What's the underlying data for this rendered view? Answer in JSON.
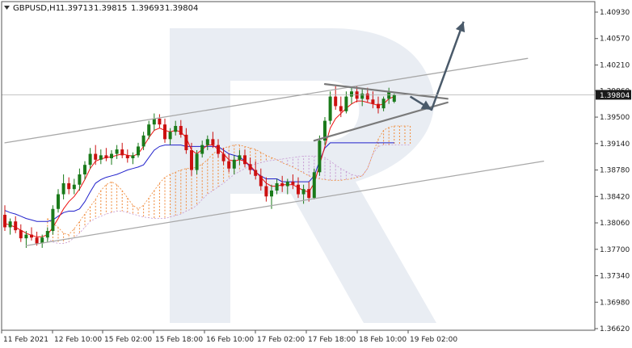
{
  "header": {
    "symbol": "GBPUSD,H1",
    "open": "1.39713",
    "high": "1.39815",
    "low": "1.39693",
    "close": "1.39804"
  },
  "colors": {
    "bull": "#1a7a1a",
    "bear": "#cc1111",
    "tenkan": "#ee1111",
    "kijun": "#2222cc",
    "cloud_a": "#f08a3a",
    "cloud_b": "#c79ad3",
    "channel": "#a8a8a8",
    "triangle": "#7a7a7a",
    "arrow": "#4a5a6a",
    "price_label_bg": "#1a1a1a",
    "price_label_text": "#ffffff",
    "watermark": "#e9edf3"
  },
  "chart_data": {
    "type": "candlestick",
    "symbol": "GBPUSD",
    "timeframe": "H1",
    "current_price": "1.39804",
    "y_ticks": [
      "1.40930",
      "1.40570",
      "1.40210",
      "1.39860",
      "1.39500",
      "1.39140",
      "1.38780",
      "1.38420",
      "1.38060",
      "1.37700",
      "1.37340",
      "1.36980",
      "1.36620"
    ],
    "ylim": [
      1.3662,
      1.4093
    ],
    "x_ticks": [
      "11 Feb 2021",
      "12 Feb 10:00",
      "15 Feb 02:00",
      "15 Feb 18:00",
      "16 Feb 10:00",
      "17 Feb 02:00",
      "17 Feb 18:00",
      "18 Feb 10:00",
      "19 Feb 02:00"
    ],
    "candles": [
      [
        1.3817,
        1.383,
        1.3795,
        1.38
      ],
      [
        1.38,
        1.3812,
        1.379,
        1.3808
      ],
      [
        1.3808,
        1.3815,
        1.3792,
        1.3796
      ],
      [
        1.3796,
        1.3804,
        1.378,
        1.3785
      ],
      [
        1.3785,
        1.3795,
        1.3772,
        1.379
      ],
      [
        1.379,
        1.38,
        1.3782,
        1.3786
      ],
      [
        1.3786,
        1.3794,
        1.3775,
        1.3778
      ],
      [
        1.3778,
        1.379,
        1.3772,
        1.3786
      ],
      [
        1.3786,
        1.38,
        1.378,
        1.3795
      ],
      [
        1.3795,
        1.383,
        1.379,
        1.3825
      ],
      [
        1.3825,
        1.3852,
        1.382,
        1.3845
      ],
      [
        1.3845,
        1.3872,
        1.3838,
        1.386
      ],
      [
        1.386,
        1.3868,
        1.3845,
        1.3852
      ],
      [
        1.3852,
        1.3866,
        1.3845,
        1.3858
      ],
      [
        1.3858,
        1.388,
        1.385,
        1.3872
      ],
      [
        1.3872,
        1.389,
        1.3865,
        1.3885
      ],
      [
        1.3885,
        1.3908,
        1.388,
        1.39
      ],
      [
        1.39,
        1.3912,
        1.3885,
        1.3892
      ],
      [
        1.3892,
        1.3906,
        1.3886,
        1.3898
      ],
      [
        1.3898,
        1.3908,
        1.389,
        1.3894
      ],
      [
        1.3894,
        1.3905,
        1.3885,
        1.39
      ],
      [
        1.39,
        1.3912,
        1.3893,
        1.3906
      ],
      [
        1.3906,
        1.3915,
        1.3894,
        1.3898
      ],
      [
        1.3898,
        1.3906,
        1.3888,
        1.3894
      ],
      [
        1.3894,
        1.3902,
        1.3886,
        1.3898
      ],
      [
        1.3898,
        1.3915,
        1.3895,
        1.391
      ],
      [
        1.391,
        1.393,
        1.3905,
        1.3925
      ],
      [
        1.3925,
        1.3945,
        1.392,
        1.394
      ],
      [
        1.394,
        1.3955,
        1.3932,
        1.3948
      ],
      [
        1.3948,
        1.3954,
        1.3935,
        1.394
      ],
      [
        1.394,
        1.3948,
        1.3915,
        1.392
      ],
      [
        1.392,
        1.3935,
        1.3912,
        1.393
      ],
      [
        1.393,
        1.3945,
        1.3925,
        1.3938
      ],
      [
        1.3938,
        1.3946,
        1.3922,
        1.3926
      ],
      [
        1.3926,
        1.3935,
        1.39,
        1.3905
      ],
      [
        1.3905,
        1.3915,
        1.387,
        1.3878
      ],
      [
        1.3878,
        1.3905,
        1.3872,
        1.39
      ],
      [
        1.39,
        1.3918,
        1.3895,
        1.3912
      ],
      [
        1.3912,
        1.3925,
        1.3905,
        1.392
      ],
      [
        1.392,
        1.393,
        1.3908,
        1.3912
      ],
      [
        1.3912,
        1.392,
        1.3895,
        1.39
      ],
      [
        1.39,
        1.3908,
        1.3885,
        1.389
      ],
      [
        1.389,
        1.39,
        1.3875,
        1.388
      ],
      [
        1.388,
        1.3898,
        1.3872,
        1.3892
      ],
      [
        1.3892,
        1.3905,
        1.3885,
        1.3898
      ],
      [
        1.3898,
        1.3906,
        1.3882,
        1.3886
      ],
      [
        1.3886,
        1.3895,
        1.3872,
        1.3878
      ],
      [
        1.3878,
        1.389,
        1.3865,
        1.387
      ],
      [
        1.387,
        1.388,
        1.385,
        1.3856
      ],
      [
        1.3856,
        1.3868,
        1.3835,
        1.3842
      ],
      [
        1.3842,
        1.3858,
        1.3825,
        1.385
      ],
      [
        1.385,
        1.3866,
        1.3845,
        1.386
      ],
      [
        1.386,
        1.387,
        1.3848,
        1.3856
      ],
      [
        1.3856,
        1.3866,
        1.3845,
        1.3862
      ],
      [
        1.3862,
        1.3872,
        1.3852,
        1.3858
      ],
      [
        1.3858,
        1.3868,
        1.384,
        1.3845
      ],
      [
        1.3845,
        1.3858,
        1.3832,
        1.3852
      ],
      [
        1.3852,
        1.3862,
        1.3835,
        1.384
      ],
      [
        1.384,
        1.388,
        1.3838,
        1.3875
      ],
      [
        1.3875,
        1.3925,
        1.387,
        1.3918
      ],
      [
        1.3918,
        1.395,
        1.3912,
        1.3945
      ],
      [
        1.3945,
        1.3985,
        1.394,
        1.3978
      ],
      [
        1.3978,
        1.3992,
        1.396,
        1.3965
      ],
      [
        1.3965,
        1.3978,
        1.395,
        1.3958
      ],
      [
        1.3958,
        1.3985,
        1.3955,
        1.3978
      ],
      [
        1.3978,
        1.399,
        1.3968,
        1.3985
      ],
      [
        1.3985,
        1.3992,
        1.397,
        1.3975
      ],
      [
        1.3975,
        1.3988,
        1.3965,
        1.3982
      ],
      [
        1.3982,
        1.399,
        1.397,
        1.3974
      ],
      [
        1.3974,
        1.3985,
        1.3962,
        1.3968
      ],
      [
        1.3968,
        1.3978,
        1.3955,
        1.3962
      ],
      [
        1.3962,
        1.3978,
        1.3958,
        1.3975
      ],
      [
        1.3975,
        1.399,
        1.3968,
        1.3985
      ],
      [
        1.3971,
        1.3982,
        1.3969,
        1.398
      ]
    ],
    "tenkan": [
      1.3805,
      1.3803,
      1.38,
      1.3796,
      1.3792,
      1.3789,
      1.3787,
      1.3787,
      1.379,
      1.38,
      1.3812,
      1.3825,
      1.3835,
      1.3842,
      1.3852,
      1.3865,
      1.388,
      1.389,
      1.3893,
      1.3895,
      1.3896,
      1.3898,
      1.39,
      1.3898,
      1.3897,
      1.39,
      1.391,
      1.3922,
      1.3932,
      1.3935,
      1.3932,
      1.393,
      1.3932,
      1.393,
      1.3922,
      1.3905,
      1.39,
      1.3906,
      1.3912,
      1.3912,
      1.3906,
      1.39,
      1.3892,
      1.389,
      1.3892,
      1.389,
      1.3884,
      1.3876,
      1.3868,
      1.386,
      1.3856,
      1.3856,
      1.3858,
      1.3858,
      1.3858,
      1.3854,
      1.385,
      1.3848,
      1.386,
      1.3885,
      1.391,
      1.3935,
      1.3948,
      1.3955,
      1.3962,
      1.3968,
      1.3972,
      1.3972,
      1.397,
      1.3968,
      1.3966,
      1.3968,
      1.3975,
      1.3978
    ],
    "kijun": [
      1.3823,
      1.382,
      1.3818,
      1.3815,
      1.3812,
      1.381,
      1.3808,
      1.3808,
      1.3808,
      1.381,
      1.3815,
      1.382,
      1.3822,
      1.3822,
      1.3825,
      1.3835,
      1.3848,
      1.386,
      1.3865,
      1.3868,
      1.387,
      1.3872,
      1.3875,
      1.3878,
      1.388,
      1.3882,
      1.3885,
      1.3895,
      1.3905,
      1.391,
      1.3912,
      1.3912,
      1.3912,
      1.3912,
      1.391,
      1.391,
      1.391,
      1.391,
      1.391,
      1.391,
      1.391,
      1.3905,
      1.39,
      1.3898,
      1.3896,
      1.389,
      1.3882,
      1.3875,
      1.387,
      1.3866,
      1.3866,
      1.3866,
      1.3862,
      1.3862,
      1.3862,
      1.3862,
      1.3862,
      1.3862,
      1.387,
      1.389,
      1.3908,
      1.3915,
      1.3915,
      1.3915,
      1.3915,
      1.3915,
      1.3915,
      1.3915,
      1.3915,
      1.3915,
      1.3915,
      1.3915,
      1.3915,
      1.3915
    ],
    "span_a": [
      1.3812,
      1.3805,
      1.38,
      1.3792,
      1.379,
      1.3798,
      1.3808,
      1.3818,
      1.3828,
      1.3838,
      1.385,
      1.3858,
      1.3862,
      1.3858,
      1.385,
      1.384,
      1.383,
      1.3825,
      1.383,
      1.384,
      1.385,
      1.386,
      1.3868,
      1.3872,
      1.3875,
      1.3878,
      1.388,
      1.388,
      1.3882,
      1.3886,
      1.3892,
      1.39,
      1.3905,
      1.3908,
      1.391,
      1.3912,
      1.3912,
      1.391,
      1.3908,
      1.3906,
      1.3902,
      1.3898,
      1.3895,
      1.3892,
      1.3888,
      1.3885,
      1.3882,
      1.3878,
      1.3874,
      1.387,
      1.3868,
      1.3866,
      1.3865,
      1.3864,
      1.3864,
      1.3864,
      1.3865,
      1.3866,
      1.3868,
      1.387,
      1.388,
      1.39,
      1.392,
      1.3932,
      1.3936,
      1.3938,
      1.3938,
      1.3938,
      1.3938
    ],
    "span_b": [
      1.3785,
      1.378,
      1.3778,
      1.3778,
      1.378,
      1.3786,
      1.3792,
      1.38,
      1.3808,
      1.3812,
      1.3815,
      1.3818,
      1.382,
      1.3822,
      1.3822,
      1.382,
      1.3818,
      1.3816,
      1.3814,
      1.3813,
      1.3812,
      1.3812,
      1.3812,
      1.3814,
      1.3816,
      1.3818,
      1.3822,
      1.3825,
      1.383,
      1.3838,
      1.3845,
      1.385,
      1.3855,
      1.386,
      1.3866,
      1.3872,
      1.3876,
      1.388,
      1.3884,
      1.3886,
      1.3888,
      1.389,
      1.3891,
      1.3892,
      1.3893,
      1.3894,
      1.3895,
      1.3896,
      1.3897,
      1.3897,
      1.3897,
      1.3897,
      1.3895,
      1.389,
      1.3885,
      1.388,
      1.3876,
      1.3872,
      1.387,
      1.387,
      1.388,
      1.39,
      1.391,
      1.3912,
      1.3912,
      1.3912,
      1.3912,
      1.3912,
      1.3912
    ],
    "channel_upper": {
      "from": [
        0,
        1.3915
      ],
      "to": [
        98,
        1.403
      ]
    },
    "channel_lower": {
      "from": [
        4,
        1.3775
      ],
      "to": [
        101,
        1.389
      ]
    },
    "triangle_top": {
      "from": [
        60,
        1.3995
      ],
      "to": [
        83,
        1.3975
      ]
    },
    "triangle_bottom": {
      "from": [
        58,
        1.3918
      ],
      "to": [
        83,
        1.397
      ]
    },
    "forecast_arrow": [
      [
        76,
        1.3978
      ],
      [
        80,
        1.396
      ],
      [
        86,
        1.408
      ]
    ]
  }
}
